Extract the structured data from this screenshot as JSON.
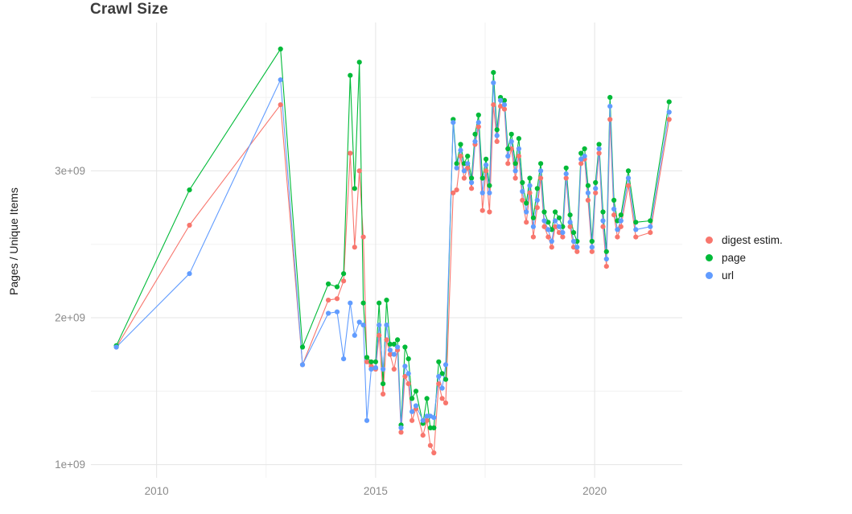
{
  "chart_data": {
    "type": "line",
    "title": "Crawl Size",
    "xlabel": "",
    "ylabel": "Pages / Unique Items",
    "value_unit": "pages x 10^9",
    "grid": true,
    "legend_position": "right",
    "x_domain": [
      2008.5,
      2022.0
    ],
    "y_domain": [
      0.91,
      4.01
    ],
    "x_ticks": {
      "major": [
        2010,
        2015,
        2020
      ],
      "minor": [
        2012.5,
        2017.5
      ],
      "labels": [
        "2010",
        "2015",
        "2020"
      ]
    },
    "y_ticks": {
      "major": [
        1,
        2,
        3
      ],
      "minor": [
        1.5,
        2.5,
        3.5
      ],
      "labels": [
        "1e+09",
        "2e+09",
        "3e+09"
      ]
    },
    "x": [
      2009.08,
      2010.75,
      2012.83,
      2013.33,
      2013.92,
      2014.12,
      2014.27,
      2014.42,
      2014.52,
      2014.63,
      2014.72,
      2014.8,
      2014.9,
      2015.0,
      2015.08,
      2015.17,
      2015.25,
      2015.33,
      2015.42,
      2015.5,
      2015.58,
      2015.67,
      2015.75,
      2015.83,
      2015.92,
      2016.08,
      2016.17,
      2016.25,
      2016.33,
      2016.44,
      2016.52,
      2016.6,
      2016.77,
      2016.85,
      2016.94,
      2017.02,
      2017.1,
      2017.19,
      2017.27,
      2017.35,
      2017.44,
      2017.52,
      2017.6,
      2017.69,
      2017.77,
      2017.85,
      2017.94,
      2018.02,
      2018.1,
      2018.19,
      2018.27,
      2018.35,
      2018.44,
      2018.52,
      2018.6,
      2018.69,
      2018.77,
      2018.85,
      2018.94,
      2019.02,
      2019.1,
      2019.19,
      2019.27,
      2019.35,
      2019.44,
      2019.52,
      2019.6,
      2019.69,
      2019.77,
      2019.85,
      2019.94,
      2020.02,
      2020.1,
      2020.19,
      2020.27,
      2020.35,
      2020.44,
      2020.52,
      2020.6,
      2020.77,
      2020.94,
      2021.27,
      2021.7
    ],
    "series": [
      {
        "name": "digest estim.",
        "color": "#F8766D",
        "values": [
          1.8,
          2.63,
          3.45,
          1.68,
          2.12,
          2.13,
          2.25,
          3.12,
          2.48,
          3.0,
          2.55,
          1.7,
          1.67,
          1.65,
          1.88,
          1.48,
          1.85,
          1.75,
          1.65,
          1.78,
          1.22,
          1.6,
          1.55,
          1.3,
          1.38,
          1.2,
          1.3,
          1.13,
          1.08,
          1.55,
          1.45,
          1.42,
          2.85,
          2.87,
          3.1,
          2.95,
          3.02,
          2.88,
          3.18,
          3.3,
          2.73,
          3.0,
          2.72,
          3.45,
          3.2,
          3.44,
          3.42,
          3.05,
          3.15,
          2.95,
          3.1,
          2.8,
          2.65,
          2.85,
          2.55,
          2.75,
          2.95,
          2.62,
          2.55,
          2.48,
          2.62,
          2.58,
          2.55,
          2.95,
          2.62,
          2.48,
          2.45,
          3.05,
          3.08,
          2.8,
          2.45,
          2.85,
          3.12,
          2.62,
          2.35,
          3.35,
          2.7,
          2.55,
          2.62,
          2.9,
          2.55,
          2.58,
          3.35
        ]
      },
      {
        "name": "page",
        "color": "#00BA38",
        "values": [
          1.81,
          2.87,
          3.83,
          1.8,
          2.23,
          2.21,
          2.3,
          3.65,
          2.88,
          3.74,
          2.1,
          1.73,
          1.7,
          1.7,
          2.1,
          1.55,
          2.12,
          1.82,
          1.82,
          1.85,
          1.27,
          1.8,
          1.72,
          1.45,
          1.5,
          1.28,
          1.45,
          1.25,
          1.25,
          1.7,
          1.62,
          1.58,
          3.35,
          3.05,
          3.18,
          3.05,
          3.1,
          2.95,
          3.25,
          3.38,
          2.95,
          3.08,
          2.9,
          3.67,
          3.28,
          3.5,
          3.48,
          3.15,
          3.25,
          3.05,
          3.22,
          2.92,
          2.78,
          2.95,
          2.68,
          2.88,
          3.05,
          2.72,
          2.65,
          2.6,
          2.72,
          2.68,
          2.62,
          3.02,
          2.7,
          2.58,
          2.52,
          3.12,
          3.15,
          2.9,
          2.52,
          2.92,
          3.18,
          2.72,
          2.45,
          3.5,
          2.8,
          2.66,
          2.7,
          3.0,
          2.65,
          2.66,
          3.47
        ]
      },
      {
        "name": "url",
        "color": "#619CFF",
        "values": [
          1.8,
          2.3,
          3.62,
          1.68,
          2.03,
          2.04,
          1.72,
          2.1,
          1.88,
          1.97,
          1.95,
          1.3,
          1.65,
          1.66,
          1.95,
          1.65,
          1.95,
          1.78,
          1.75,
          1.8,
          1.25,
          1.67,
          1.62,
          1.36,
          1.4,
          1.3,
          1.33,
          1.33,
          1.32,
          1.6,
          1.52,
          1.68,
          3.33,
          3.02,
          3.14,
          3.0,
          3.05,
          2.92,
          3.2,
          3.33,
          2.85,
          3.04,
          2.85,
          3.6,
          3.24,
          3.48,
          3.45,
          3.1,
          3.2,
          3.0,
          3.15,
          2.86,
          2.72,
          2.9,
          2.62,
          2.8,
          3.0,
          2.66,
          2.6,
          2.52,
          2.66,
          2.62,
          2.58,
          2.98,
          2.65,
          2.52,
          2.48,
          3.08,
          3.1,
          2.85,
          2.48,
          2.88,
          3.15,
          2.66,
          2.4,
          3.44,
          2.74,
          2.6,
          2.66,
          2.95,
          2.6,
          2.62,
          3.4
        ]
      }
    ],
    "style": {
      "grid_major_color": "#e5e5e5",
      "grid_minor_color": "#f2f2f2",
      "tick_label_color": "#8a8a8a",
      "background": "#ffffff"
    }
  }
}
